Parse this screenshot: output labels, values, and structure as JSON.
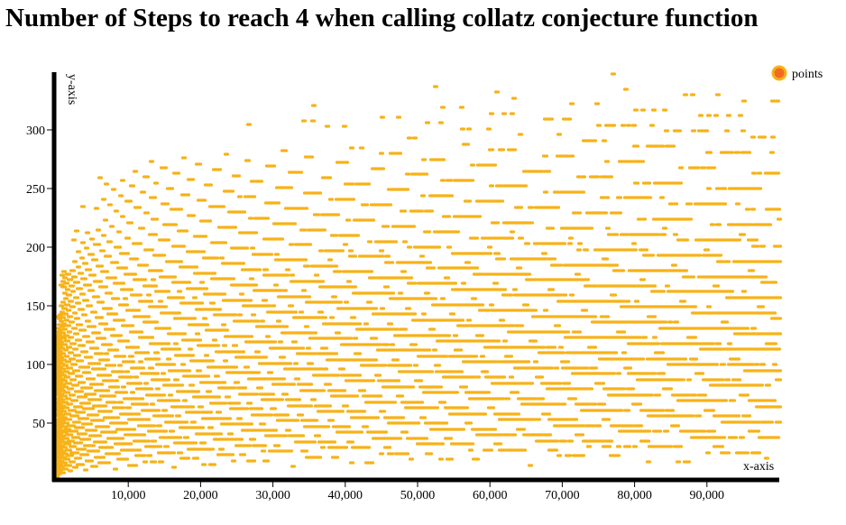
{
  "chart_data": {
    "type": "scatter",
    "title": "Number of Steps to reach 4 when calling collatz conjecture function",
    "xlabel": "x-axis",
    "ylabel": "y-axis",
    "xlim": [
      0,
      100000
    ],
    "ylim": [
      0,
      350
    ],
    "x_ticks": [
      10000,
      20000,
      30000,
      40000,
      50000,
      60000,
      70000,
      80000,
      90000
    ],
    "x_tick_labels": [
      "10,000",
      "20,000",
      "30,000",
      "40,000",
      "50,000",
      "60,000",
      "70,000",
      "80,000",
      "90,000"
    ],
    "y_ticks": [
      50,
      100,
      150,
      200,
      250,
      300
    ],
    "y_tick_labels": [
      "50",
      "100",
      "150",
      "200",
      "250",
      "300"
    ],
    "grid": false,
    "legend": {
      "placement": "top-right",
      "entries": [
        "points"
      ]
    },
    "series": [
      {
        "name": "points",
        "color": "#f7b217",
        "point_rule": "x = n for n = 1 .. 100000; y = number of Collatz steps for n to reach 4"
      }
    ]
  },
  "colors": {
    "point": "#f7b217",
    "legend_ring": "#f7b217",
    "legend_fill": "#f36b21",
    "axis": "#000000"
  }
}
